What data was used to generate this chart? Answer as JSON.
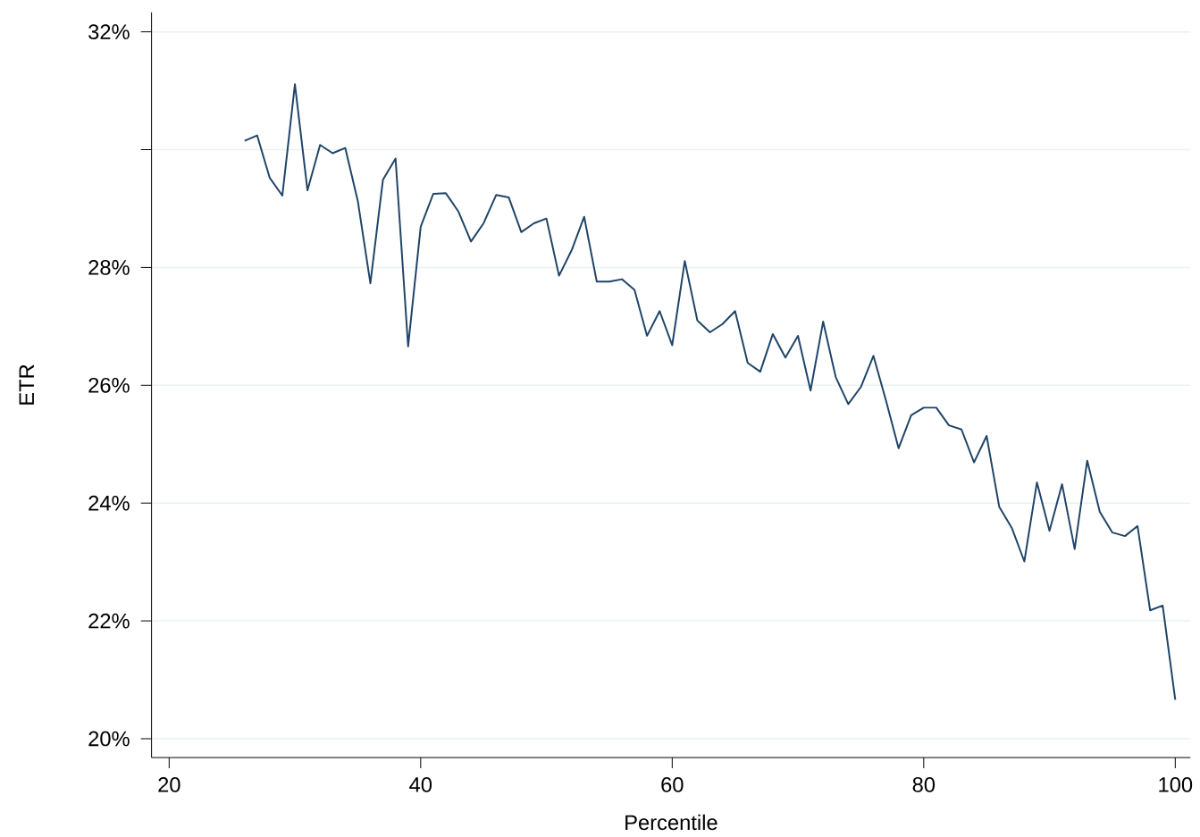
{
  "chart_data": {
    "type": "line",
    "xlabel": "Percentile",
    "ylabel": "ETR",
    "x": [
      26,
      27,
      28,
      29,
      30,
      31,
      32,
      33,
      34,
      35,
      36,
      37,
      38,
      39,
      40,
      41,
      42,
      43,
      44,
      45,
      46,
      47,
      48,
      49,
      50,
      51,
      52,
      53,
      54,
      55,
      56,
      57,
      58,
      59,
      60,
      61,
      62,
      63,
      64,
      65,
      66,
      67,
      68,
      69,
      70,
      71,
      72,
      73,
      74,
      75,
      76,
      77,
      78,
      79,
      80,
      81,
      82,
      83,
      84,
      85,
      86,
      87,
      88,
      89,
      90,
      91,
      92,
      93,
      94,
      95,
      96,
      97,
      98,
      99,
      100
    ],
    "series": [
      {
        "color": "#1f4468",
        "values": [
          30.15,
          30.24,
          29.52,
          29.22,
          31.11,
          29.31,
          30.08,
          29.94,
          30.03,
          29.13,
          27.73,
          29.49,
          29.85,
          26.66,
          28.69,
          29.25,
          29.26,
          28.95,
          28.44,
          28.75,
          29.23,
          29.19,
          28.6,
          28.75,
          28.83,
          27.86,
          28.29,
          28.86,
          27.76,
          27.76,
          27.8,
          27.62,
          26.84,
          27.26,
          26.68,
          28.11,
          27.1,
          26.9,
          27.04,
          27.26,
          26.38,
          26.23,
          26.87,
          26.47,
          26.84,
          25.91,
          27.08,
          26.14,
          25.68,
          25.97,
          26.5,
          25.74,
          24.93,
          25.49,
          25.62,
          25.62,
          25.32,
          25.25,
          24.69,
          25.14,
          23.94,
          23.58,
          23.01,
          24.35,
          23.53,
          24.32,
          23.22,
          24.72,
          23.85,
          23.5,
          23.44,
          23.61,
          22.18,
          22.26,
          20.66
        ]
      }
    ],
    "xlim": [
      18.6,
      101.2
    ],
    "ylim": [
      19.68,
      32.33
    ],
    "xticks": [
      20,
      40,
      60,
      80,
      100
    ],
    "yticks": [
      {
        "value": 20,
        "label": "20%"
      },
      {
        "value": 22,
        "label": "22%"
      },
      {
        "value": 24,
        "label": "24%"
      },
      {
        "value": 26,
        "label": "26%"
      },
      {
        "value": 28,
        "label": "28%"
      },
      {
        "value": 30,
        "label": null
      },
      {
        "value": 32,
        "label": "32%"
      }
    ],
    "grid": "y",
    "line_style": "solid",
    "marker": "none"
  }
}
